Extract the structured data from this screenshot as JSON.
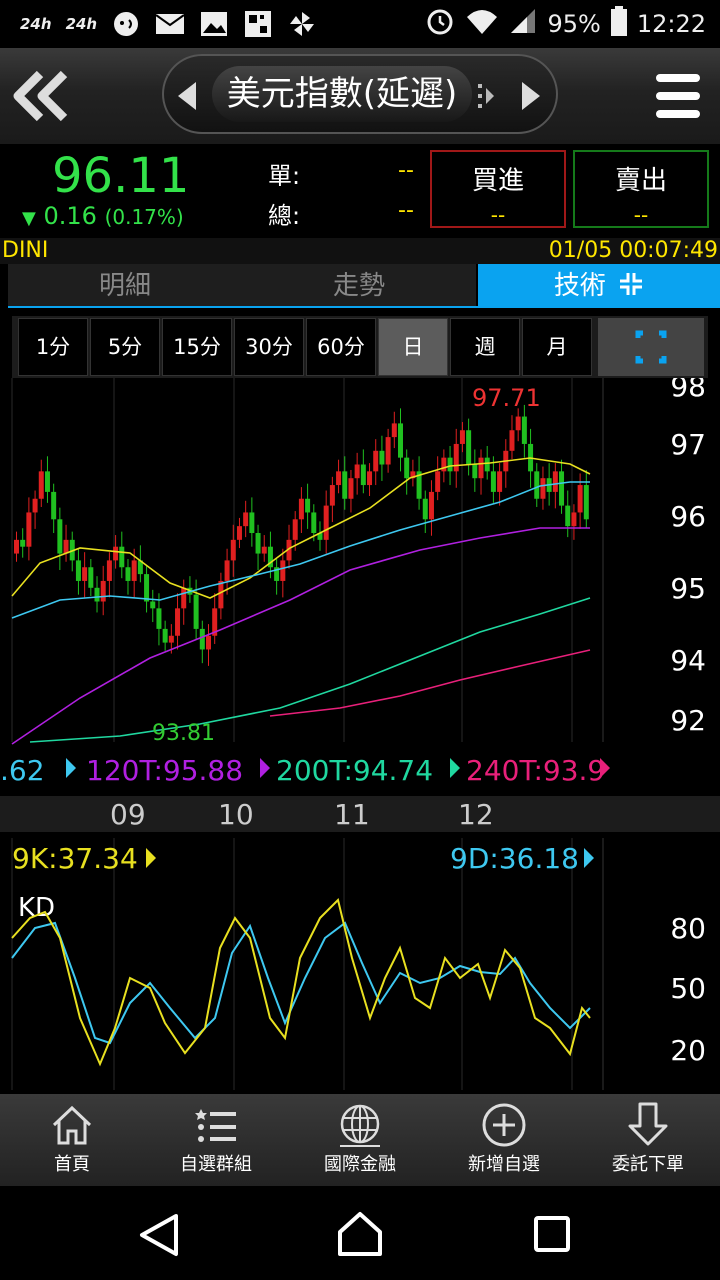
{
  "status_bar": {
    "left_icons": [
      "24h-icon",
      "24h-icon",
      "chat-icon",
      "mail-icon",
      "image-icon",
      "qr-icon",
      "pinwheel-icon"
    ],
    "left_labels": [
      "24h",
      "24h"
    ],
    "battery": "95%",
    "time": "12:22"
  },
  "header": {
    "title": "美元指數(延遲)"
  },
  "quote": {
    "price": "96.11",
    "change": "0.16",
    "change_pct": "(0.17%)",
    "change_arrow": "▼",
    "dan_label": "單:",
    "dan_value": "--",
    "zong_label": "總:",
    "zong_value": "--",
    "buy_label": "買進",
    "buy_value": "--",
    "sell_label": "賣出",
    "sell_value": "--"
  },
  "symbol": "DINI",
  "datetime": "01/05 00:07:49",
  "tabs": [
    {
      "label": "明細",
      "active": false
    },
    {
      "label": "走勢",
      "active": false
    },
    {
      "label": "技術",
      "active": true
    }
  ],
  "periods": [
    "1分",
    "5分",
    "15分",
    "30分",
    "60分",
    "日",
    "週",
    "月"
  ],
  "active_period": "日",
  "chart_data": {
    "type": "candlestick",
    "high_label": "97.71",
    "low_label": "93.81",
    "y_ticks": [
      "98",
      "97",
      "96",
      "95",
      "94",
      "92"
    ],
    "x_ticks": [
      "09",
      "10",
      "11",
      "12"
    ],
    "ma_legend": [
      {
        "name": ".62",
        "color": "#3ec8f0"
      },
      {
        "name": "120T:95.88",
        "color": "#b020e0"
      },
      {
        "name": "200T:94.74",
        "color": "#20d8a0"
      },
      {
        "name": "240T:93.9",
        "color": "#e8207a"
      }
    ],
    "kd": {
      "title": "KD",
      "k_label": "9K:37.34",
      "d_label": "9D:36.18",
      "y_ticks": [
        "80",
        "50",
        "20"
      ]
    }
  },
  "bottom_nav": [
    {
      "label": "首頁",
      "icon": "home-icon"
    },
    {
      "label": "自選群組",
      "icon": "list-icon"
    },
    {
      "label": "國際金融",
      "icon": "globe-icon"
    },
    {
      "label": "新增自選",
      "icon": "plus-circle-icon"
    },
    {
      "label": "委託下單",
      "icon": "order-down-icon"
    }
  ]
}
